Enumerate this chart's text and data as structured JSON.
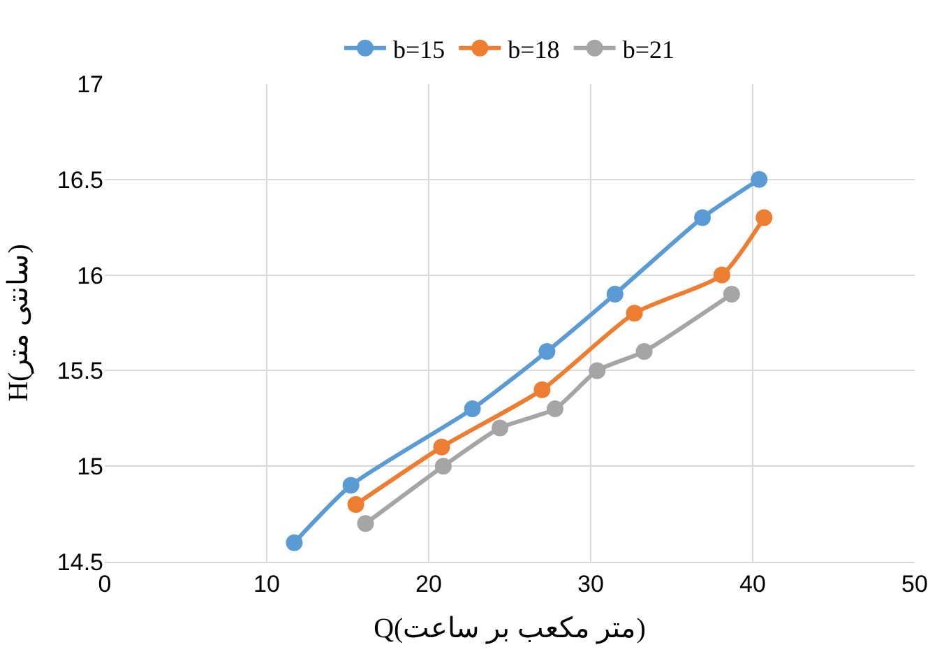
{
  "chart_data": {
    "type": "line",
    "xlabel": "Q(متر مکعب بر ساعت)",
    "ylabel": "H(سانتی متر)",
    "xlim": [
      0,
      50
    ],
    "xticks": [
      0,
      10,
      20,
      30,
      40,
      50
    ],
    "ylim": [
      14.5,
      17
    ],
    "yticks": [
      14.5,
      15,
      15.5,
      16,
      16.5,
      17
    ],
    "grid": true,
    "legend": "top",
    "marker": "circle",
    "line_style": "solid",
    "series": [
      {
        "name": "b=15",
        "color": "#5b9bd5",
        "x": [
          11.7,
          15.2,
          22.7,
          27.3,
          31.5,
          36.9,
          40.4
        ],
        "values": [
          14.6,
          14.9,
          15.3,
          15.6,
          15.9,
          16.3,
          16.5
        ]
      },
      {
        "name": "b=18",
        "color": "#ed7d31",
        "x": [
          15.5,
          20.8,
          27.0,
          32.7,
          38.1,
          40.7
        ],
        "values": [
          14.8,
          15.1,
          15.4,
          15.8,
          16.0,
          16.3
        ]
      },
      {
        "name": "b=21",
        "color": "#a5a5a5",
        "x": [
          16.1,
          20.9,
          24.4,
          27.8,
          30.4,
          33.3,
          38.7
        ],
        "values": [
          14.7,
          15.0,
          15.2,
          15.3,
          15.5,
          15.6,
          15.9
        ]
      }
    ]
  }
}
